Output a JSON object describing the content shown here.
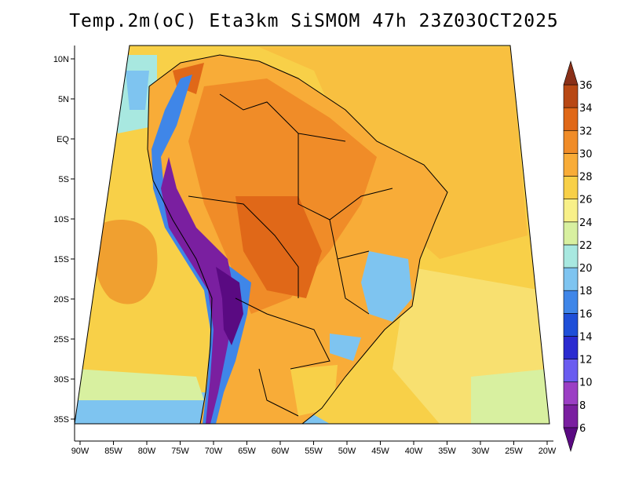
{
  "chart_data": {
    "type": "heatmap",
    "title": "Temp.2m(oC) Eta3km SiSMOM 47h 23Z03OCT2025",
    "variable": "Temp.2m",
    "units": "oC",
    "model": "Eta3km SiSMOM",
    "forecast_hour": "47h",
    "valid_time": "23Z03OCT2025",
    "x_ticks": [
      "90W",
      "85W",
      "80W",
      "75W",
      "70W",
      "65W",
      "60W",
      "55W",
      "50W",
      "45W",
      "40W",
      "35W",
      "30W",
      "25W",
      "20W"
    ],
    "y_ticks": [
      "10N",
      "5N",
      "EQ",
      "5S",
      "10S",
      "15S",
      "20S",
      "25S",
      "30S",
      "35S"
    ],
    "lon_range": [
      -91,
      -20
    ],
    "lat_range": [
      -38,
      11
    ],
    "colorbar": {
      "min": 6,
      "max": 36,
      "labels": [
        "6",
        "8",
        "10",
        "12",
        "14",
        "16",
        "18",
        "20",
        "22",
        "24",
        "26",
        "28",
        "30",
        "32",
        "34",
        "36"
      ],
      "levels": [
        6,
        8,
        10,
        12,
        14,
        16,
        18,
        20,
        22,
        24,
        26,
        28,
        30,
        32,
        34,
        36
      ],
      "colors": [
        "#5a0a82",
        "#7a1fa0",
        "#9b3fc4",
        "#6a5cf0",
        "#2b2bd0",
        "#1f4fd8",
        "#3f86e8",
        "#7ec4f0",
        "#a8e8e0",
        "#d8f0a0",
        "#f8f088",
        "#f8d048",
        "#f8ac38",
        "#f08c28",
        "#e06818",
        "#b84814",
        "#8a3018"
      ]
    }
  }
}
